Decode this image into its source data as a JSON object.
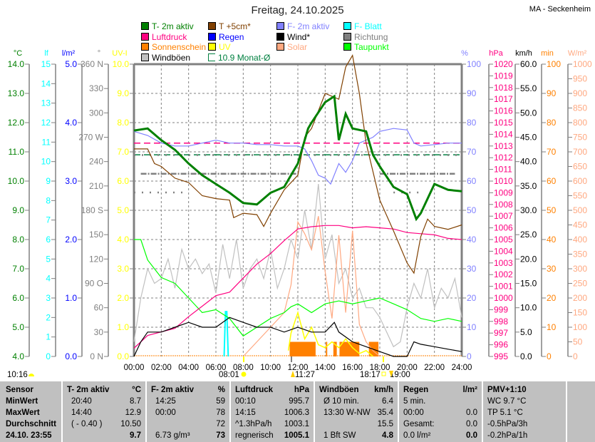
{
  "header": {
    "title": "Freitag, 24.10.2025",
    "station": "MA - Seckenheim"
  },
  "legend": [
    {
      "label": "T- 2m aktiv",
      "color": "#008000"
    },
    {
      "label": "T +5cm*",
      "color": "#804000"
    },
    {
      "label": "F- 2m aktiv",
      "color": "#8080ff"
    },
    {
      "label": "F- Blatt",
      "color": "#00ffff"
    },
    {
      "label": "Luftdruck",
      "color": "#ff0080"
    },
    {
      "label": "Regen",
      "color": "#0000ff"
    },
    {
      "label": "Wind*",
      "color": "#000000"
    },
    {
      "label": "Richtung",
      "color": "#808080"
    },
    {
      "label": "Sonnenschein",
      "color": "#ff8000"
    },
    {
      "label": "UV",
      "color": "#ffff00"
    },
    {
      "label": "Solar",
      "color": "#ffa880"
    },
    {
      "label": "Taupunkt",
      "color": "#00ff00"
    },
    {
      "label": "Windböen",
      "color": "#c0c0c0"
    },
    {
      "label": "10.9 Monat-Ø",
      "color": "#008040"
    }
  ],
  "chart_data": {
    "type": "line",
    "xlabel": "",
    "x_range_hours": [
      0,
      24
    ],
    "x_ticks": [
      "00:00",
      "02:00",
      "04:00",
      "06:00",
      "08:00",
      "10:00",
      "12:00",
      "14:00",
      "16:00",
      "18:00",
      "20:00",
      "22:00",
      "24:00"
    ],
    "grid": true,
    "axes": {
      "temp": {
        "unit": "°C",
        "side": "left",
        "range": [
          4,
          14
        ],
        "step": 1,
        "color": "#008000",
        "labels": [
          "4.0",
          "5.0",
          "6.0",
          "7.0",
          "8.0",
          "9.0",
          "10.0",
          "11.0",
          "12.0",
          "13.0",
          "14.0"
        ]
      },
      "leaf": {
        "unit": "lf",
        "side": "left",
        "range": [
          0,
          15
        ],
        "step": 1,
        "color": "#00ffff",
        "labels": [
          "0",
          "1",
          "2",
          "3",
          "4",
          "5",
          "6",
          "7",
          "8",
          "9",
          "10",
          "11",
          "12",
          "13",
          "14",
          "15"
        ]
      },
      "rain": {
        "unit": "l/m²",
        "side": "left",
        "range": [
          0,
          5
        ],
        "step": 1,
        "color": "#0000ff",
        "labels": [
          "0.0",
          "1.0",
          "2.0",
          "3.0",
          "4.0",
          "5.0"
        ]
      },
      "dir": {
        "unit": "°",
        "side": "left",
        "range": [
          0,
          360
        ],
        "step": 30,
        "color": "#808080",
        "labels": [
          "0   N",
          "30",
          "60",
          "90  O",
          "120",
          "150",
          "180 S",
          "210",
          "240",
          "270 W",
          "300",
          "330",
          "360 N"
        ]
      },
      "uv": {
        "unit": "UV-I",
        "side": "left",
        "range": [
          0,
          10
        ],
        "step": 1,
        "color": "#ffff00",
        "labels": [
          "0.0",
          "1.0",
          "2.0",
          "3.0",
          "4.0",
          "5.0",
          "6.0",
          "7.0",
          "8.0",
          "9.0",
          "10.0"
        ]
      },
      "hum": {
        "unit": "%",
        "side": "right",
        "range": [
          0,
          100
        ],
        "step": 10,
        "color": "#8080ff",
        "labels": [
          "0",
          "10",
          "20",
          "30",
          "40",
          "50",
          "60",
          "70",
          "80",
          "90",
          "100"
        ]
      },
      "press": {
        "unit": "hPa",
        "side": "right",
        "range": [
          995,
          1020
        ],
        "step": 1,
        "color": "#ff0080",
        "labels": [
          "995",
          "996",
          "997",
          "998",
          "999",
          "1000",
          "1001",
          "1002",
          "1003",
          "1004",
          "1005",
          "1006",
          "1007",
          "1008",
          "1009",
          "1010",
          "1011",
          "1012",
          "1013",
          "1014",
          "1015",
          "1016",
          "1017",
          "1018",
          "1019",
          "1020"
        ]
      },
      "wind": {
        "unit": "km/h",
        "side": "right",
        "range": [
          0,
          60
        ],
        "step": 5,
        "color": "#000000",
        "labels": [
          "0.0",
          "5.0",
          "10.0",
          "15.0",
          "20.0",
          "25.0",
          "30.0",
          "35.0",
          "40.0",
          "45.0",
          "50.0",
          "55.0",
          "60.0"
        ]
      },
      "sun": {
        "unit": "min",
        "side": "right",
        "range": [
          0,
          100
        ],
        "step": 10,
        "color": "#ff8000",
        "labels": [
          "0",
          "10",
          "20",
          "30",
          "40",
          "50",
          "60",
          "70",
          "80",
          "90",
          "100"
        ]
      },
      "solar": {
        "unit": "W/m²",
        "side": "right",
        "range": [
          0,
          1000
        ],
        "step": 50,
        "color": "#ffa880",
        "labels": [
          "0",
          "50",
          "100",
          "150",
          "200",
          "250",
          "300",
          "350",
          "400",
          "450",
          "500",
          "550",
          "600",
          "650",
          "700",
          "750",
          "800",
          "850",
          "900",
          "950",
          "1000"
        ]
      }
    },
    "series": [
      {
        "name": "Windböen",
        "axis": "wind",
        "color": "#c0c0c0",
        "x": [
          0,
          0.5,
          1,
          1.5,
          2,
          2.5,
          3,
          3.5,
          4,
          4.5,
          5,
          5.5,
          6,
          6.5,
          7,
          7.5,
          8,
          8.5,
          9,
          9.5,
          10,
          10.5,
          11,
          11.5,
          12,
          12.5,
          13,
          13.5,
          14,
          14.5,
          15,
          15.5,
          16,
          16.5,
          17,
          17.5,
          18,
          18.5,
          19,
          19.5,
          20,
          20.5,
          21,
          21.5,
          22,
          22.5,
          23,
          23.5,
          24
        ],
        "y": [
          3,
          12,
          18,
          15,
          16,
          20,
          14,
          22,
          18,
          20,
          17,
          19,
          13,
          23,
          16,
          24,
          14,
          18,
          20,
          16,
          22,
          14,
          18,
          24,
          20,
          30,
          22,
          35.4,
          20,
          25,
          15,
          18,
          12,
          14,
          10,
          10,
          8,
          5,
          2,
          3,
          10,
          15,
          12,
          18,
          10,
          14,
          12,
          16,
          8
        ]
      },
      {
        "name": "Solar",
        "axis": "solar",
        "color": "#ffa880",
        "x": [
          8,
          9,
          10,
          11,
          11.5,
          12,
          12.5,
          13,
          13.5,
          14,
          14.5,
          15,
          15.5,
          16,
          16.5,
          17,
          17.5,
          18
        ],
        "y": [
          0,
          50,
          100,
          150,
          245,
          460,
          420,
          365,
          480,
          290,
          130,
          415,
          150,
          430,
          110,
          50,
          20,
          0
        ]
      },
      {
        "name": "Taupunkt",
        "axis": "temp",
        "color": "#00ff00",
        "x": [
          0,
          0.5,
          1,
          2,
          3,
          4,
          5,
          6,
          7,
          8,
          9,
          10,
          11,
          11.5,
          12,
          13,
          14,
          15,
          16,
          17,
          18,
          19,
          20,
          21,
          22,
          23,
          24
        ],
        "y": [
          8.0,
          8.0,
          7.3,
          6.7,
          6.5,
          6.0,
          5.5,
          5.6,
          5.3,
          4.7,
          5.0,
          5.3,
          5.5,
          5.7,
          5.8,
          5.5,
          5.8,
          5.9,
          5.8,
          5.9,
          6.0,
          5.8,
          5.6,
          5.3,
          5.2,
          5.3,
          5.2
        ]
      },
      {
        "name": "Luftdruck",
        "axis": "press",
        "color": "#ff0080",
        "x": [
          0,
          1,
          2,
          3,
          4,
          5,
          6,
          7,
          8,
          9,
          10,
          11,
          12,
          13,
          14,
          15,
          16,
          17,
          18,
          19,
          20,
          21,
          22,
          23,
          24
        ],
        "y": [
          995.7,
          996.8,
          997.1,
          997.4,
          998.4,
          999.3,
          1000.2,
          1000.5,
          1001.7,
          1002.9,
          1003.8,
          1004.9,
          1005.9,
          1006.1,
          1006.2,
          1006.2,
          1006.0,
          1006.1,
          1006.0,
          1005.9,
          1005.6,
          1005.5,
          1005.4,
          1005.1,
          1005.0
        ]
      },
      {
        "name": "F- 2m aktiv",
        "axis": "hum",
        "color": "#8080ff",
        "x": [
          0,
          1,
          2,
          3,
          4,
          5,
          6,
          7,
          8,
          9,
          10,
          11,
          12,
          12.5,
          13,
          13.5,
          14,
          14.4,
          15,
          15.5,
          16,
          16.5,
          17,
          17.5,
          18,
          19,
          20,
          20.5,
          21,
          22,
          23,
          24
        ],
        "y": [
          77,
          75.6,
          73,
          72,
          72,
          73,
          74,
          73,
          73,
          72.5,
          72.5,
          72,
          72,
          71,
          67,
          62,
          61,
          59,
          66,
          63,
          67,
          73,
          74,
          75,
          77,
          78,
          77.5,
          73,
          72,
          72.5,
          73,
          73
        ]
      },
      {
        "name": "T +5cm*",
        "axis": "temp",
        "color": "#804000",
        "x": [
          0,
          1,
          1.5,
          2,
          3,
          4,
          5,
          6,
          7,
          7.3,
          8,
          9,
          9.5,
          10,
          11,
          12,
          12.5,
          13,
          14,
          15,
          15.5,
          16,
          16.5,
          17,
          18,
          19,
          20,
          20.5,
          21,
          21.5,
          22,
          23,
          24
        ],
        "y": [
          11.1,
          11.1,
          10.6,
          10.5,
          10.1,
          9.95,
          9.5,
          9.4,
          9.35,
          8.75,
          8.9,
          8.85,
          8.45,
          8.9,
          9.7,
          10.2,
          11.5,
          11.8,
          13.0,
          12.8,
          13.9,
          14.3,
          13.0,
          11.3,
          9.35,
          8.3,
          7.2,
          6.85,
          8.1,
          8.7,
          8.45,
          8.35,
          8.5
        ]
      },
      {
        "name": "T- 2m aktiv",
        "axis": "temp",
        "color": "#008000",
        "x": [
          0,
          1,
          2,
          3,
          4,
          5,
          6,
          7,
          8,
          9,
          10,
          11,
          12,
          12.75,
          13,
          14,
          14.67,
          15,
          15.5,
          16,
          17,
          17.5,
          18,
          19,
          20,
          20.67,
          21,
          22,
          23,
          24
        ],
        "y": [
          11.73,
          11.8,
          11.4,
          11.07,
          10.6,
          10.2,
          9.9,
          9.6,
          9.25,
          9.2,
          9.6,
          9.8,
          10.6,
          11.8,
          12.0,
          12.7,
          12.9,
          11.4,
          12.3,
          11.8,
          11.7,
          10.9,
          10.5,
          9.8,
          9.55,
          8.7,
          8.9,
          9.9,
          9.7,
          9.65
        ]
      }
    ],
    "leaf_wetness": {
      "name": "F- Blatt",
      "axis": "leaf",
      "x": [
        6.6,
        6.7,
        6.8,
        6.9
      ],
      "y": [
        0,
        2.3,
        2.3,
        0
      ]
    },
    "uv": {
      "name": "UV",
      "axis": "uv",
      "x": [
        11.3,
        11.5,
        12,
        12.5,
        13,
        13.5,
        14,
        14.5,
        15,
        15.5,
        16,
        16.5,
        17,
        17.5
      ],
      "y": [
        0.2,
        0.8,
        1.5,
        0.6,
        1.0,
        0.4,
        0.3,
        0.5,
        0.3,
        0.6,
        0.3,
        0.1,
        0.2,
        0
      ]
    },
    "sunshine": {
      "name": "Sonnenschein",
      "axis": "sun",
      "value_per_interval": 5,
      "intervals": [
        [
          11.4,
          13.3
        ],
        [
          14.05,
          14.15
        ],
        [
          14.6,
          14.85
        ],
        [
          15.05,
          16.5
        ],
        [
          17.2,
          17.9
        ]
      ]
    },
    "wind": {
      "name": "Wind*",
      "axis": "wind",
      "x": [
        0,
        0.5,
        1,
        2,
        3,
        4,
        5,
        6,
        7,
        8,
        9,
        10,
        11,
        12,
        13,
        14,
        14.67,
        15,
        16,
        17,
        18,
        19,
        20,
        20.5,
        21,
        22,
        23,
        24
      ],
      "y": [
        0,
        3,
        5,
        5,
        6,
        7,
        6,
        6,
        8,
        7,
        6,
        6,
        5,
        6,
        5,
        5,
        7,
        5,
        3,
        2,
        1,
        0,
        0,
        3,
        2.5,
        2,
        1.5,
        1
      ]
    },
    "direction": {
      "name": "Richtung",
      "axis": "dir",
      "segments": [
        {
          "from": 0.5,
          "to": 12,
          "value": 225
        },
        {
          "from": 18,
          "to": 23.5,
          "value": 225
        },
        {
          "from": 0,
          "to": 24,
          "value": 248
        },
        {
          "from": 0,
          "to": 4,
          "value": 202
        },
        {
          "from": 19,
          "to": 21,
          "value": 202
        }
      ]
    },
    "month_avg_temp": 10.9,
    "reference_pressure": 1013.25
  },
  "timeline": {
    "daylength": "10:16",
    "sunrise": "08:01",
    "moonrise": "11:27",
    "sunset": "18:17",
    "moonset": "19:00"
  },
  "table": {
    "sensor": {
      "head": "Sensor",
      "rows": [
        "MinWert",
        "MaxWert",
        "Durchschnitt",
        "24.10. 23:55"
      ]
    },
    "temp": {
      "head": "T- 2m aktiv",
      "unit": "°C",
      "rows": [
        [
          "20:40",
          "8.7"
        ],
        [
          "14:40",
          "12.9"
        ],
        [
          "( - 0.40 )",
          "10.50"
        ],
        [
          "",
          "9.7"
        ]
      ]
    },
    "hum": {
      "head": "F- 2m aktiv",
      "unit": "%",
      "rows": [
        [
          "14:25",
          "59"
        ],
        [
          "00:00",
          "78"
        ],
        [
          "",
          "72"
        ],
        [
          "6.73 g/m³",
          "73"
        ]
      ]
    },
    "press": {
      "head": "Luftdruck",
      "unit": "hPa",
      "rows": [
        [
          "00:10",
          "995.7"
        ],
        [
          "14:15",
          "1006.3"
        ],
        [
          "^1.3hPa/h",
          "1003.1"
        ],
        [
          "regnerisch",
          "1005.1"
        ]
      ]
    },
    "gust": {
      "head": "Windböen",
      "unit": "km/h",
      "rows": [
        [
          "Ø 10 min.",
          "6.4"
        ],
        [
          "13:30    W-NW",
          "35.4"
        ],
        [
          "",
          "15.5"
        ],
        [
          "1 Bft SW",
          "4.8"
        ]
      ]
    },
    "rain": {
      "head": "Regen",
      "unit": "l/m²",
      "rows": [
        [
          "5 min.",
          ""
        ],
        [
          "00:00",
          "0.0"
        ],
        [
          "Gesamt:",
          "0.0"
        ],
        [
          "0.0 l/m²",
          "0.0"
        ]
      ]
    },
    "pmv": {
      "head": "PMV+1:10",
      "rows": [
        "WC 9.7 °C",
        "TP 5.1 °C",
        "-0.5hPa/3h",
        "-0.2hPa/1h"
      ]
    }
  }
}
